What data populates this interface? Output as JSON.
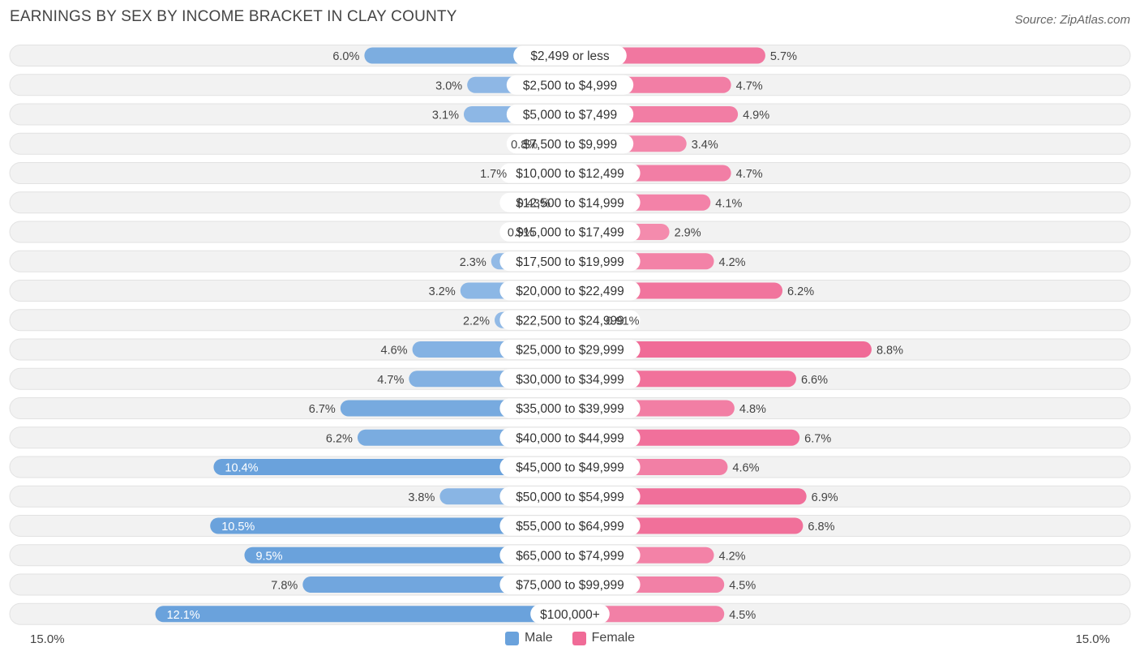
{
  "title": "EARNINGS BY SEX BY INCOME BRACKET IN CLAY COUNTY",
  "source": "Source: ZipAtlas.com",
  "axis": {
    "left_label": "15.0%",
    "right_label": "15.0%"
  },
  "legend": {
    "male_label": "Male",
    "female_label": "Female"
  },
  "colors": {
    "male": "#6aa2dc",
    "male_light": "#a9c8ec",
    "female": "#f06b97",
    "female_light": "#f7a8c2",
    "row_bg": "#f2f2f2",
    "row_border": "#e2e2e2"
  },
  "chart_data": {
    "type": "bar",
    "orientation": "horizontal-diverging",
    "title": "EARNINGS BY SEX BY INCOME BRACKET IN CLAY COUNTY",
    "xlim": [
      -15.0,
      15.0
    ],
    "unit": "%",
    "categories": [
      "$2,499 or less",
      "$2,500 to $4,999",
      "$5,000 to $7,499",
      "$7,500 to $9,999",
      "$10,000 to $12,499",
      "$12,500 to $14,999",
      "$15,000 to $17,499",
      "$17,500 to $19,999",
      "$20,000 to $22,499",
      "$22,500 to $24,999",
      "$25,000 to $29,999",
      "$30,000 to $34,999",
      "$35,000 to $39,999",
      "$40,000 to $44,999",
      "$45,000 to $49,999",
      "$50,000 to $54,999",
      "$55,000 to $64,999",
      "$65,000 to $74,999",
      "$75,000 to $99,999",
      "$100,000+"
    ],
    "series": [
      {
        "name": "Male",
        "values": [
          6.0,
          3.0,
          3.1,
          0.8,
          1.7,
          0.43,
          0.9,
          2.3,
          3.2,
          2.2,
          4.6,
          4.7,
          6.7,
          6.2,
          10.4,
          3.8,
          10.5,
          9.5,
          7.8,
          12.1
        ],
        "labels": [
          "6.0%",
          "3.0%",
          "3.1%",
          "0.8%",
          "1.7%",
          "0.43%",
          "0.9%",
          "2.3%",
          "3.2%",
          "2.2%",
          "4.6%",
          "4.7%",
          "6.7%",
          "6.2%",
          "10.4%",
          "3.8%",
          "10.5%",
          "9.5%",
          "7.8%",
          "12.1%"
        ]
      },
      {
        "name": "Female",
        "values": [
          5.7,
          4.7,
          4.9,
          3.4,
          4.7,
          4.1,
          2.9,
          4.2,
          6.2,
          0.91,
          8.8,
          6.6,
          4.8,
          6.7,
          4.6,
          6.9,
          6.8,
          4.2,
          4.5,
          4.5
        ],
        "labels": [
          "5.7%",
          "4.7%",
          "4.9%",
          "3.4%",
          "4.7%",
          "4.1%",
          "2.9%",
          "4.2%",
          "6.2%",
          "0.91%",
          "8.8%",
          "6.6%",
          "4.8%",
          "6.7%",
          "4.6%",
          "6.9%",
          "6.8%",
          "4.2%",
          "4.5%",
          "4.5%"
        ]
      }
    ]
  }
}
